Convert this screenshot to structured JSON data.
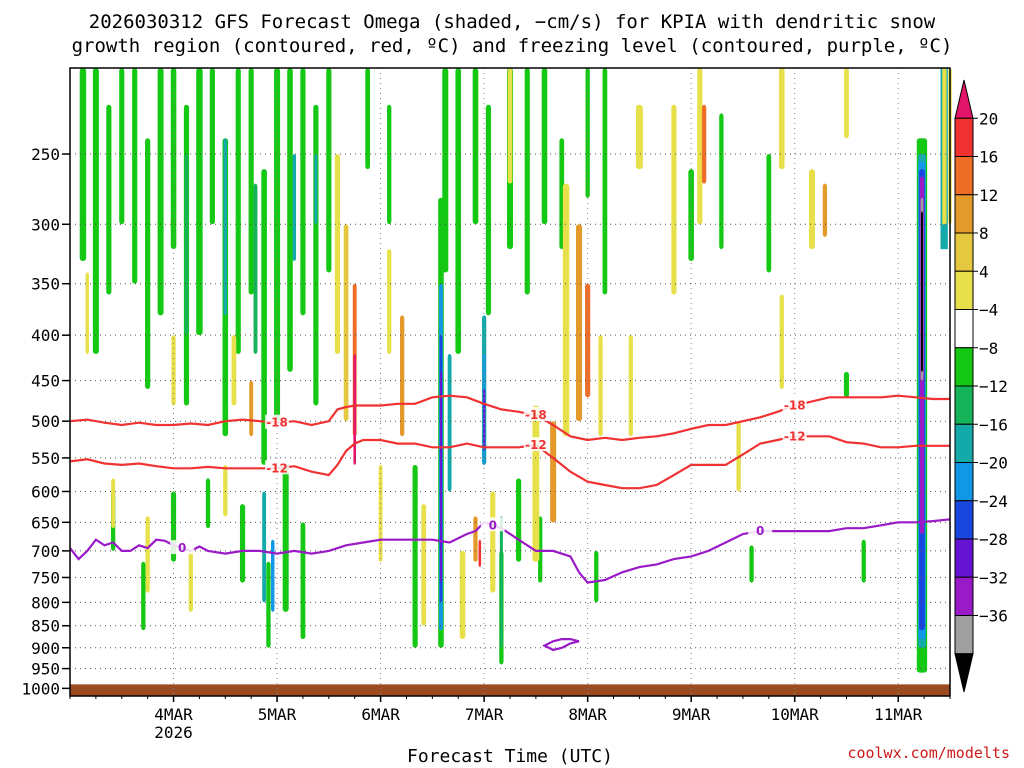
{
  "chart_data": {
    "type": "heatmap",
    "title_lines": [
      "2026030312 GFS Forecast Omega (shaded, −cm/s) for KPIA with dendritic snow",
      "growth region (contoured, red, ºC) and freezing level (contoured, purple, ºC)"
    ],
    "xlabel": "Forecast Time (UTC)",
    "credit": "coolwx.com/modelts",
    "x_range_hours": [
      -12,
      192
    ],
    "x_ticks": [
      {
        "label": "4MAR",
        "sub": "2026",
        "hour": 12
      },
      {
        "label": "5MAR",
        "sub": "",
        "hour": 36
      },
      {
        "label": "6MAR",
        "sub": "",
        "hour": 60
      },
      {
        "label": "7MAR",
        "sub": "",
        "hour": 84
      },
      {
        "label": "8MAR",
        "sub": "",
        "hour": 108
      },
      {
        "label": "9MAR",
        "sub": "",
        "hour": 132
      },
      {
        "label": "10MAR",
        "sub": "",
        "hour": 156
      },
      {
        "label": "11MAR",
        "sub": "",
        "hour": 180
      }
    ],
    "y_range_hPa": [
      1020,
      200
    ],
    "y_ticks": [
      250,
      300,
      350,
      400,
      450,
      500,
      550,
      600,
      650,
      700,
      750,
      800,
      850,
      900,
      950,
      1000
    ],
    "colorbar": {
      "labels": [
        "20",
        "16",
        "12",
        "8",
        "4",
        "−4",
        "−8",
        "−12",
        "−16",
        "−20",
        "−24",
        "−28",
        "−32",
        "−36"
      ],
      "colors": [
        "#e3156b",
        "#f03232",
        "#ee6e28",
        "#e39a2a",
        "#e6c840",
        "#e8e04a",
        "#ffffff",
        "#14c814",
        "#16b45a",
        "#14aaaa",
        "#1296e6",
        "#1a46e0",
        "#6414d2",
        "#9a1ac8",
        "#a0a0a0",
        "#000000"
      ]
    },
    "series": [
      {
        "name": "Freezing level 0ºC (purple)",
        "color": "#9a1ac8",
        "label": "0",
        "x": [
          -12,
          -10,
          -8,
          -6,
          -4,
          -2,
          0,
          2,
          4,
          6,
          8,
          10,
          12,
          14,
          16,
          18,
          20,
          24,
          28,
          32,
          36,
          40,
          44,
          48,
          52,
          56,
          60,
          64,
          68,
          72,
          76,
          80,
          82,
          84,
          86,
          88,
          92,
          96,
          100,
          104,
          106,
          108,
          112,
          116,
          120,
          124,
          128,
          132,
          136,
          140,
          144,
          148,
          152,
          156,
          160,
          164,
          168,
          172,
          176,
          180,
          184,
          188,
          192
        ],
        "y": [
          695,
          715,
          700,
          680,
          690,
          685,
          700,
          700,
          690,
          695,
          680,
          682,
          690,
          695,
          700,
          692,
          700,
          705,
          700,
          700,
          705,
          700,
          705,
          700,
          690,
          685,
          680,
          680,
          680,
          680,
          685,
          670,
          665,
          650,
          655,
          660,
          680,
          700,
          700,
          710,
          740,
          760,
          755,
          740,
          730,
          725,
          715,
          710,
          700,
          685,
          670,
          665,
          665,
          665,
          665,
          665,
          660,
          660,
          655,
          650,
          650,
          648,
          645
        ]
      },
      {
        "name": "Dendritic -12ºC (red)",
        "color": "#f03232",
        "label": "-12",
        "x": [
          -12,
          -8,
          -4,
          0,
          4,
          8,
          12,
          16,
          20,
          24,
          28,
          32,
          36,
          40,
          44,
          48,
          50,
          52,
          54,
          56,
          58,
          60,
          64,
          68,
          72,
          76,
          80,
          84,
          88,
          92,
          96,
          100,
          104,
          108,
          112,
          116,
          120,
          124,
          128,
          132,
          136,
          140,
          144,
          148,
          152,
          156,
          160,
          164,
          168,
          172,
          176,
          180,
          184,
          188,
          192
        ],
        "y": [
          555,
          552,
          558,
          560,
          558,
          562,
          565,
          565,
          563,
          565,
          565,
          565,
          565,
          562,
          570,
          575,
          560,
          540,
          530,
          525,
          525,
          525,
          530,
          530,
          535,
          535,
          530,
          535,
          535,
          535,
          532,
          550,
          570,
          585,
          590,
          595,
          595,
          590,
          575,
          560,
          560,
          560,
          545,
          530,
          525,
          520,
          520,
          520,
          528,
          530,
          535,
          535,
          533,
          533,
          533
        ]
      },
      {
        "name": "Dendritic -18ºC (red)",
        "color": "#f03232",
        "label": "-18",
        "x": [
          -12,
          -8,
          -4,
          0,
          4,
          8,
          12,
          16,
          20,
          24,
          28,
          32,
          36,
          40,
          44,
          48,
          50,
          52,
          54,
          56,
          58,
          60,
          64,
          68,
          72,
          76,
          80,
          84,
          88,
          92,
          96,
          100,
          104,
          108,
          112,
          116,
          120,
          124,
          128,
          132,
          136,
          140,
          144,
          148,
          152,
          156,
          160,
          164,
          168,
          172,
          176,
          180,
          184,
          188,
          192
        ],
        "y": [
          500,
          498,
          502,
          505,
          502,
          505,
          505,
          503,
          505,
          500,
          498,
          500,
          502,
          500,
          505,
          500,
          485,
          482,
          480,
          480,
          480,
          480,
          478,
          478,
          470,
          468,
          470,
          478,
          485,
          488,
          492,
          505,
          520,
          525,
          522,
          525,
          522,
          520,
          516,
          510,
          505,
          505,
          500,
          495,
          488,
          480,
          475,
          470,
          470,
          470,
          470,
          468,
          470,
          472,
          472
        ]
      },
      {
        "name": "Freezing level small closed 0ºC contour (purple)",
        "color": "#9a1ac8",
        "label": "",
        "closed": true,
        "x": [
          98,
          100,
          102,
          104,
          106,
          104,
          102,
          100,
          98
        ],
        "y": [
          895,
          905,
          900,
          890,
          885,
          880,
          880,
          885,
          895
        ]
      }
    ],
    "shading_note": "Shaded omega field drawn as bands: green/teal/blue = rising motion, yellow/orange = sinking motion; brown strip = terrain near 1000 hPa"
  }
}
